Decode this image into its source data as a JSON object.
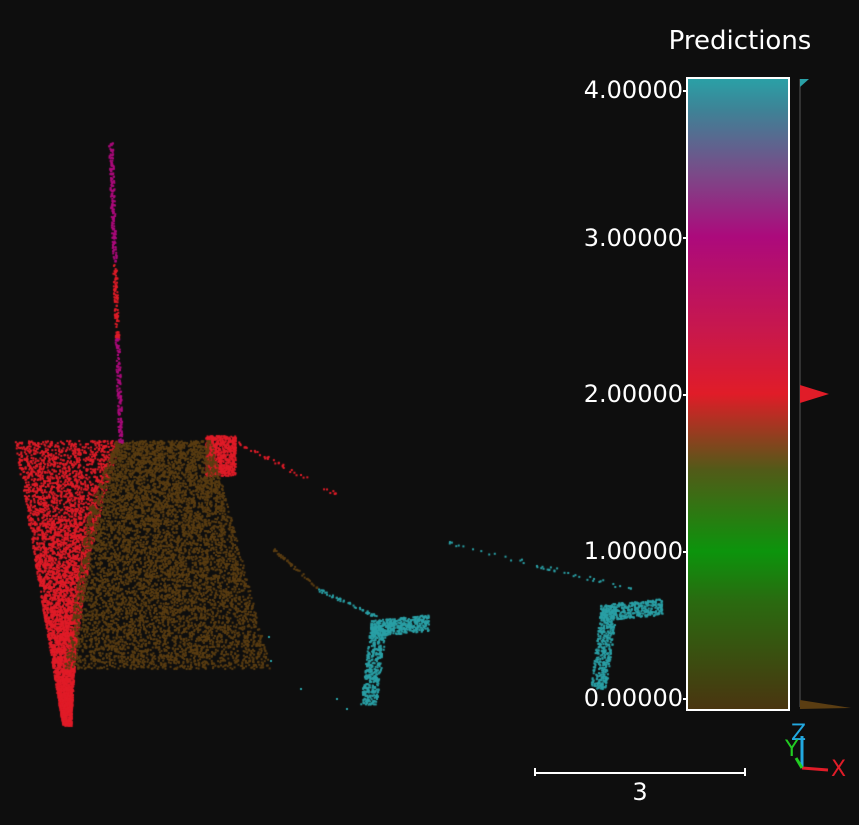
{
  "colorbar": {
    "title": "Predictions",
    "ticks": [
      "4.00000",
      "3.00000",
      "2.00000",
      "1.00000",
      "0.00000"
    ],
    "range": [
      0,
      4
    ],
    "histogram_peaks": [
      0,
      2,
      4
    ]
  },
  "scale_bar": {
    "label": "3"
  },
  "axes": {
    "z": "Z",
    "y": "Y",
    "x": "X"
  },
  "colors": {
    "background": "#0e0e0e",
    "class_0": "#5a3d12",
    "class_1": "#0c940c",
    "class_2": "#e01c28",
    "class_3": "#ac0a7c",
    "class_4": "#2aa0a6"
  }
}
